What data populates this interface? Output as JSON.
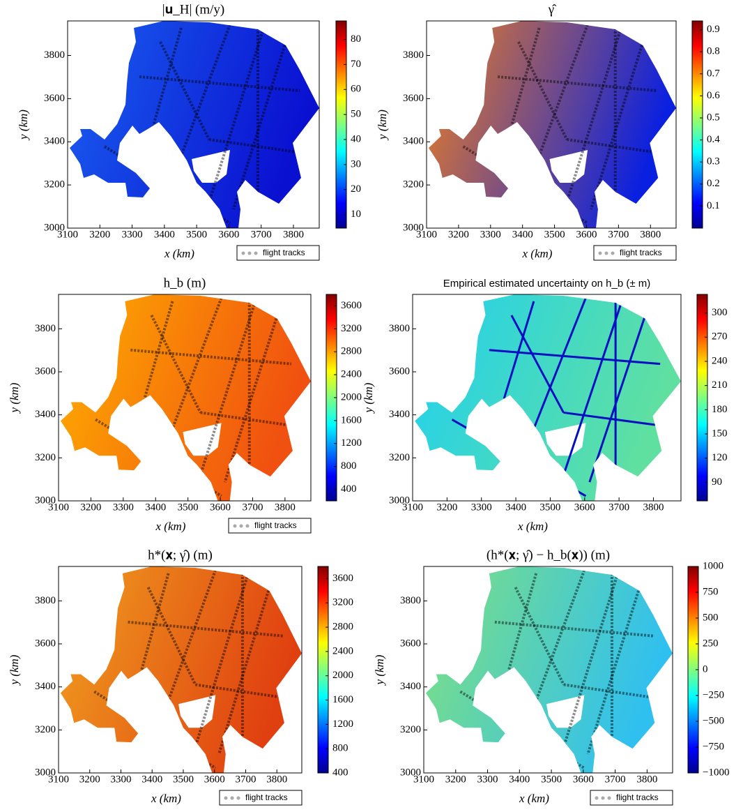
{
  "chart_data": [
    {
      "type": "heatmap",
      "title": "|𝐮_H| (m/y)",
      "xlabel": "x (km)",
      "ylabel": "y (km)",
      "xlim": [
        3100,
        3880
      ],
      "ylim": [
        3000,
        3960
      ],
      "xticks": [
        3100,
        3200,
        3300,
        3400,
        3500,
        3600,
        3700,
        3800
      ],
      "yticks": [
        3000,
        3200,
        3400,
        3600,
        3800
      ],
      "colorbar_lim": [
        4.6,
        87.4
      ],
      "colorbar_ticks": [
        10,
        20,
        30,
        40,
        50,
        60,
        70,
        80
      ],
      "legend": "flight tracks",
      "colors": [
        "#1a60f0",
        "#0a10d0"
      ]
    },
    {
      "type": "heatmap",
      "title": "γ̂",
      "xlabel": "x (km)",
      "ylabel": "y (km)",
      "xlim": [
        3100,
        3880
      ],
      "ylim": [
        3000,
        3960
      ],
      "xticks": [
        3100,
        3200,
        3300,
        3400,
        3500,
        3600,
        3700,
        3800
      ],
      "yticks": [
        3000,
        3200,
        3400,
        3600,
        3800
      ],
      "colorbar_lim": [
        0,
        0.94
      ],
      "colorbar_ticks": [
        0.1,
        0.2,
        0.3,
        0.4,
        0.5,
        0.6,
        0.7,
        0.8,
        0.9
      ],
      "legend": "flight tracks",
      "colors": [
        "#f08020",
        "#0a20e0"
      ]
    },
    {
      "type": "heatmap",
      "title": "h_b (m)",
      "xlabel": "x (km)",
      "ylabel": "y (km)",
      "xlim": [
        3100,
        3880
      ],
      "ylim": [
        3000,
        3960
      ],
      "xticks": [
        3100,
        3200,
        3300,
        3400,
        3500,
        3600,
        3700,
        3800
      ],
      "yticks": [
        3000,
        3200,
        3400,
        3600,
        3800
      ],
      "colorbar_lim": [
        200,
        3800
      ],
      "colorbar_ticks": [
        400,
        800,
        1200,
        1600,
        2000,
        2400,
        2800,
        3200,
        3600
      ],
      "legend": "flight tracks",
      "colors": [
        "#ffb000",
        "#f05010"
      ]
    },
    {
      "type": "heatmap",
      "title": "Empirical estimated uncertainty on h_b (± m)",
      "xlabel": "x (km)",
      "ylabel": "y (km)",
      "xlim": [
        3100,
        3880
      ],
      "ylim": [
        3000,
        3960
      ],
      "xticks": [
        3100,
        3200,
        3300,
        3400,
        3500,
        3600,
        3700,
        3800
      ],
      "yticks": [
        3000,
        3200,
        3400,
        3600,
        3800
      ],
      "colorbar_lim": [
        67,
        323
      ],
      "colorbar_ticks": [
        90,
        120,
        150,
        180,
        210,
        240,
        270,
        300
      ],
      "colors": [
        "#20d0f0",
        "#60e0a0"
      ]
    },
    {
      "type": "heatmap",
      "title": "h*(𝐱; γ̂) (m)",
      "xlabel": "x (km)",
      "ylabel": "y (km)",
      "xlim": [
        3100,
        3880
      ],
      "ylim": [
        3000,
        3960
      ],
      "xticks": [
        3100,
        3200,
        3300,
        3400,
        3500,
        3600,
        3700,
        3800
      ],
      "yticks": [
        3000,
        3200,
        3400,
        3600,
        3800
      ],
      "colorbar_lim": [
        400,
        3800
      ],
      "colorbar_ticks": [
        400,
        800,
        1200,
        1600,
        2000,
        2400,
        2800,
        3200,
        3600
      ],
      "legend": "flight tracks",
      "colors": [
        "#f0a020",
        "#e04010"
      ]
    },
    {
      "type": "heatmap",
      "title": "(h*(𝐱; γ̂) − h_b(𝐱)) (m)",
      "xlabel": "x (km)",
      "ylabel": "y (km)",
      "xlim": [
        3100,
        3880
      ],
      "ylim": [
        3000,
        3960
      ],
      "xticks": [
        3100,
        3200,
        3300,
        3400,
        3500,
        3600,
        3700,
        3800
      ],
      "yticks": [
        3000,
        3200,
        3400,
        3600,
        3800
      ],
      "colorbar_lim": [
        -1000,
        1000
      ],
      "colorbar_ticks": [
        {
          "value": -1000,
          "label": "−1000"
        },
        {
          "value": -750,
          "label": "−750"
        },
        {
          "value": -500,
          "label": "−500"
        },
        {
          "value": -250,
          "label": "−250"
        },
        0,
        250,
        500,
        750,
        1000
      ],
      "legend": "flight tracks",
      "colors": [
        "#80e080",
        "#30c0f0"
      ]
    }
  ]
}
